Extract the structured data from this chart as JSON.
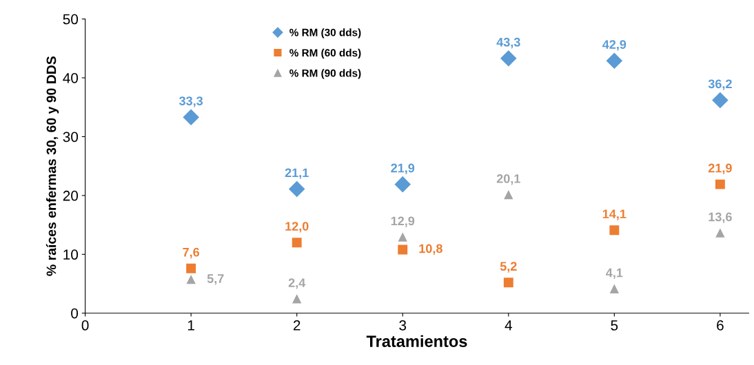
{
  "chart_data": {
    "type": "scatter",
    "xlabel": "Tratamientos",
    "ylabel": "% raíces enfermas 30, 60 y 90 DDS",
    "x": [
      1,
      2,
      3,
      4,
      5,
      6
    ],
    "series": [
      {
        "name": "% RM (30 dds)",
        "color": "#5b9bd5",
        "marker": "diamond",
        "values": [
          33.3,
          21.1,
          21.9,
          43.3,
          42.9,
          36.2
        ],
        "value_labels": [
          "33,3",
          "21,1",
          "21,9",
          "43,3",
          "42,9",
          "36,2"
        ]
      },
      {
        "name": "% RM (60 dds)",
        "color": "#ed7d31",
        "marker": "square",
        "values": [
          7.6,
          12.0,
          10.8,
          5.2,
          14.1,
          21.9
        ],
        "value_labels": [
          "7,6",
          "12,0",
          "10,8",
          "5,2",
          "14,1",
          "21,9"
        ]
      },
      {
        "name": "% RM (90 dds)",
        "color": "#a5a5a5",
        "marker": "triangle",
        "values": [
          5.7,
          2.4,
          12.9,
          20.1,
          4.1,
          13.6
        ],
        "value_labels": [
          "5,7",
          "2,4",
          "12,9",
          "20,1",
          "4,1",
          "13,6"
        ]
      }
    ],
    "xlim": [
      0,
      6.27
    ],
    "xticks": [
      0,
      1,
      2,
      3,
      4,
      5,
      6
    ],
    "ylim": [
      0,
      50
    ],
    "yticks": [
      0,
      10,
      20,
      30,
      40,
      50
    ],
    "grid": false,
    "legend": "top"
  }
}
